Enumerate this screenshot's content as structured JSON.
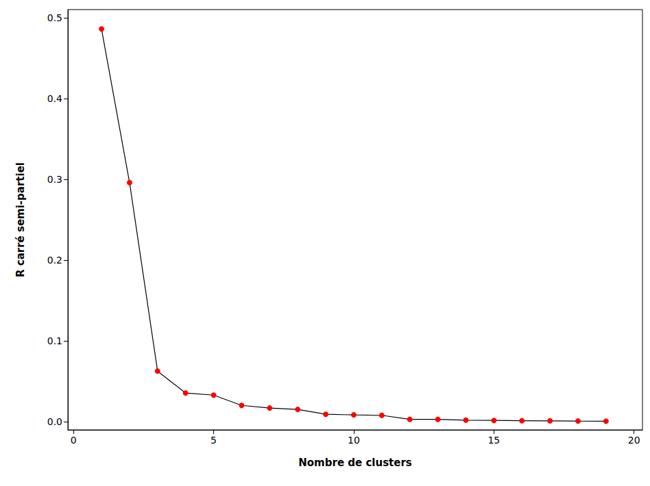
{
  "chart_data": {
    "type": "line",
    "x_label": "Nombre de clusters",
    "y_label": "R carré semi-partiel",
    "x": [
      1,
      2,
      3,
      4,
      5,
      6,
      7,
      8,
      9,
      10,
      11,
      12,
      13,
      14,
      15,
      16,
      17,
      18,
      19
    ],
    "series": [
      {
        "name": "R carré semi-partiel",
        "color": "#ff0000",
        "marker": "circle",
        "line_style": "solid",
        "values": [
          0.486,
          0.296,
          0.0627,
          0.0356,
          0.033,
          0.0203,
          0.017,
          0.0153,
          0.0093,
          0.0085,
          0.008,
          0.003,
          0.003,
          0.002,
          0.0017,
          0.0013,
          0.0012,
          0.0009,
          0.0007
        ]
      }
    ],
    "xlim": [
      -0.2,
      20.3
    ],
    "xticks": [
      0,
      5,
      10,
      15,
      20
    ],
    "ylim": [
      -0.01,
      0.51
    ],
    "yticks": [
      {
        "value": 0,
        "label": "0.0"
      },
      0.1,
      0.2,
      0.3,
      0.4,
      0.5
    ],
    "grid": false
  }
}
